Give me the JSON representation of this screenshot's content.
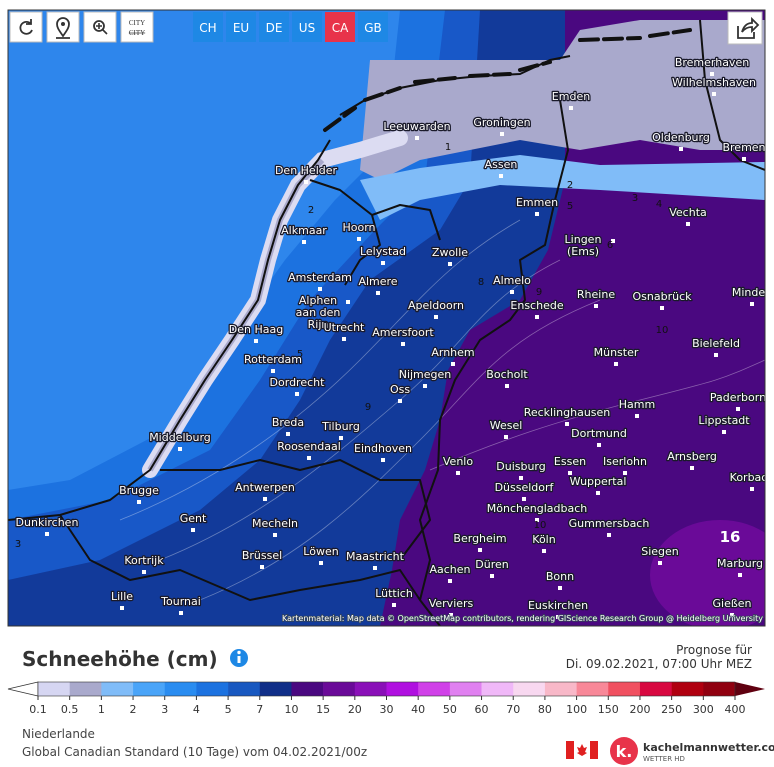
{
  "toolbar": {
    "city_icon": "CITY",
    "regions": [
      "CH",
      "EU",
      "DE",
      "US",
      "CA",
      "GB"
    ]
  },
  "map": {
    "cities": [
      "Bremerhaven",
      "Wilhelmshaven",
      "Emden",
      "Leeuwarden",
      "Groningen",
      "Oldenburg",
      "Bremen",
      "Den Helder",
      "Assen",
      "Emmen",
      "Vechta",
      "Alkmaar",
      "Hoorn",
      [
        "Lingen",
        "(Ems)"
      ],
      "Lelystad",
      "Zwolle",
      "Amsterdam",
      "Almere",
      "Almelo",
      "Rheine",
      "Osnabrück",
      "Minden",
      [
        "Alphen",
        "aan den",
        "Rijn"
      ],
      "Den Haag",
      "Utrecht",
      "Apeldoorn",
      "Enschede",
      "Amersfoort",
      "Bielefeld",
      "Arnhem",
      "Münster",
      "Rotterdam",
      "Nijmegen",
      "Bocholt",
      "Dordrecht",
      "Oss",
      "Hamm",
      "Paderborn",
      "Recklinghausen",
      "Lippstadt",
      "Breda",
      "Tilburg",
      "Wesel",
      "Dortmund",
      "Middelburg",
      "Roosendaal",
      "Eindhoven",
      "Arnsberg",
      "Venlo",
      "Duisburg",
      "Essen",
      "Iserlohn",
      "Korbach",
      "Wuppertal",
      "Düsseldorf",
      "Antwerpen",
      "Brugge",
      "Mönchengladbach",
      "Gent",
      "Dunkirchen",
      "Mecheln",
      "Gummersbach",
      "Bergheim",
      "Köln",
      "Kortrijk",
      "Brüssel",
      "Löwen",
      "Maastricht",
      "Siegen",
      "Marburg",
      "Aachen",
      "Düren",
      "Bonn",
      "Lille",
      "Tournai",
      "Lüttich",
      "Verviers",
      "Euskirchen",
      "Gießen"
    ],
    "contour_labels": [
      1,
      2,
      2,
      3,
      4,
      5,
      6,
      8,
      9,
      10,
      5,
      9,
      10,
      16,
      3
    ],
    "attribution": "Kartenmaterial: Map data © OpenStreetMap contributors, rendering GIScience Research Group @ Heidelberg University"
  },
  "legend": {
    "title": "Schneehöhe (cm)",
    "forecast_label": "Prognose für",
    "forecast_time": "Di. 09.02.2021, 07:00 Uhr MEZ",
    "labels": [
      "0.1",
      "0.5",
      "1",
      "2",
      "3",
      "4",
      "5",
      "7",
      "10",
      "15",
      "20",
      "30",
      "40",
      "50",
      "60",
      "70",
      "80",
      "100",
      "150",
      "200",
      "250",
      "300",
      "400"
    ],
    "colors": [
      "#d6d6f2",
      "#a9a9cc",
      "#80bcf8",
      "#4aa4f8",
      "#2a8cf0",
      "#1c72e0",
      "#1858c0",
      "#102e88",
      "#4a0880",
      "#6a0a98",
      "#8a10b8",
      "#b010e0",
      "#d040e8",
      "#e080f0",
      "#f0b8f8",
      "#f8d8f0",
      "#f8b8c8",
      "#f88898",
      "#f05060",
      "#d80840",
      "#b00010",
      "#900010"
    ],
    "below_color": "#ffffff",
    "above_color": "#600010"
  },
  "footer": {
    "region": "Niederlande",
    "model": "Global Canadian Standard (10 Tage) vom 04.02.2021/00z",
    "brand": "kachelmannwetter.com",
    "brand_sub": "WETTER HD",
    "logo_letter": "k."
  }
}
